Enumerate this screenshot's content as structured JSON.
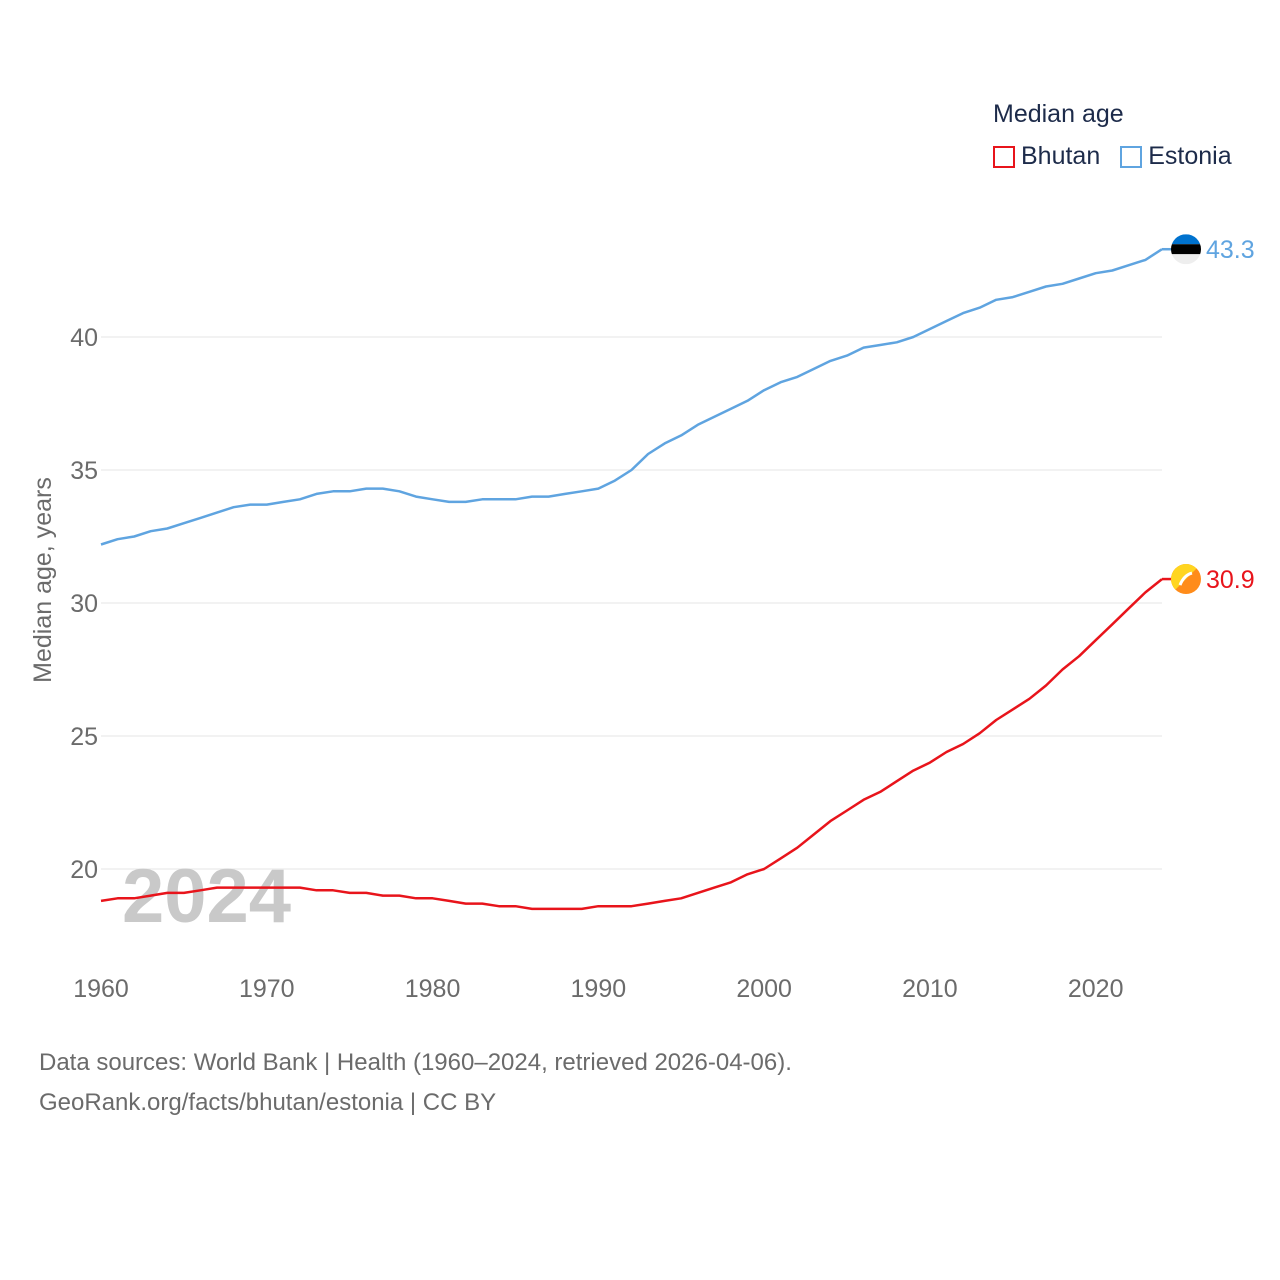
{
  "colors": {
    "bhutan": "#e8141b",
    "estonia": "#5fa4e0",
    "grid": "#e6e6e6",
    "axis_text": "#6b6b6b",
    "year_watermark": "#c9c9c9"
  },
  "legend": {
    "title": "Median age",
    "items": [
      {
        "label": "Bhutan",
        "color": "#e8141b"
      },
      {
        "label": "Estonia",
        "color": "#5fa4e0"
      }
    ]
  },
  "year_label": "2024",
  "source": {
    "line1": "Data sources: World Bank | Health (1960–2024, retrieved 2026-04-06).",
    "line2": "GeoRank.org/facts/bhutan/estonia | CC BY"
  },
  "chart_data": {
    "type": "line",
    "title": "Median age",
    "xlabel": "",
    "ylabel": "Median age, years",
    "xlim": [
      1960,
      2024
    ],
    "ylim": [
      17,
      45
    ],
    "x_ticks": [
      1960,
      1970,
      1980,
      1990,
      2000,
      2010,
      2020
    ],
    "y_ticks": [
      20,
      25,
      30,
      35,
      40
    ],
    "grid": true,
    "legend_position": "top-right",
    "x": [
      1960,
      1961,
      1962,
      1963,
      1964,
      1965,
      1966,
      1967,
      1968,
      1969,
      1970,
      1971,
      1972,
      1973,
      1974,
      1975,
      1976,
      1977,
      1978,
      1979,
      1980,
      1981,
      1982,
      1983,
      1984,
      1985,
      1986,
      1987,
      1988,
      1989,
      1990,
      1991,
      1992,
      1993,
      1994,
      1995,
      1996,
      1997,
      1998,
      1999,
      2000,
      2001,
      2002,
      2003,
      2004,
      2005,
      2006,
      2007,
      2008,
      2009,
      2010,
      2011,
      2012,
      2013,
      2014,
      2015,
      2016,
      2017,
      2018,
      2019,
      2020,
      2021,
      2022,
      2023,
      2024
    ],
    "series": [
      {
        "name": "Bhutan",
        "color": "#e8141b",
        "end_label": "30.9",
        "values": [
          18.8,
          18.9,
          18.9,
          19.0,
          19.1,
          19.1,
          19.2,
          19.3,
          19.3,
          19.3,
          19.3,
          19.3,
          19.3,
          19.2,
          19.2,
          19.1,
          19.1,
          19.0,
          19.0,
          18.9,
          18.9,
          18.8,
          18.7,
          18.7,
          18.6,
          18.6,
          18.5,
          18.5,
          18.5,
          18.5,
          18.6,
          18.6,
          18.6,
          18.7,
          18.8,
          18.9,
          19.1,
          19.3,
          19.5,
          19.8,
          20.0,
          20.4,
          20.8,
          21.3,
          21.8,
          22.2,
          22.6,
          22.9,
          23.3,
          23.7,
          24.0,
          24.4,
          24.7,
          25.1,
          25.6,
          26.0,
          26.4,
          26.9,
          27.5,
          28.0,
          28.6,
          29.2,
          29.8,
          30.4,
          30.9
        ]
      },
      {
        "name": "Estonia",
        "color": "#5fa4e0",
        "end_label": "43.3",
        "values": [
          32.2,
          32.4,
          32.5,
          32.7,
          32.8,
          33.0,
          33.2,
          33.4,
          33.6,
          33.7,
          33.7,
          33.8,
          33.9,
          34.1,
          34.2,
          34.2,
          34.3,
          34.3,
          34.2,
          34.0,
          33.9,
          33.8,
          33.8,
          33.9,
          33.9,
          33.9,
          34.0,
          34.0,
          34.1,
          34.2,
          34.3,
          34.6,
          35.0,
          35.6,
          36.0,
          36.3,
          36.7,
          37.0,
          37.3,
          37.6,
          38.0,
          38.3,
          38.5,
          38.8,
          39.1,
          39.3,
          39.6,
          39.7,
          39.8,
          40.0,
          40.3,
          40.6,
          40.9,
          41.1,
          41.4,
          41.5,
          41.7,
          41.9,
          42.0,
          42.2,
          42.4,
          42.5,
          42.7,
          42.9,
          43.3
        ]
      }
    ]
  }
}
